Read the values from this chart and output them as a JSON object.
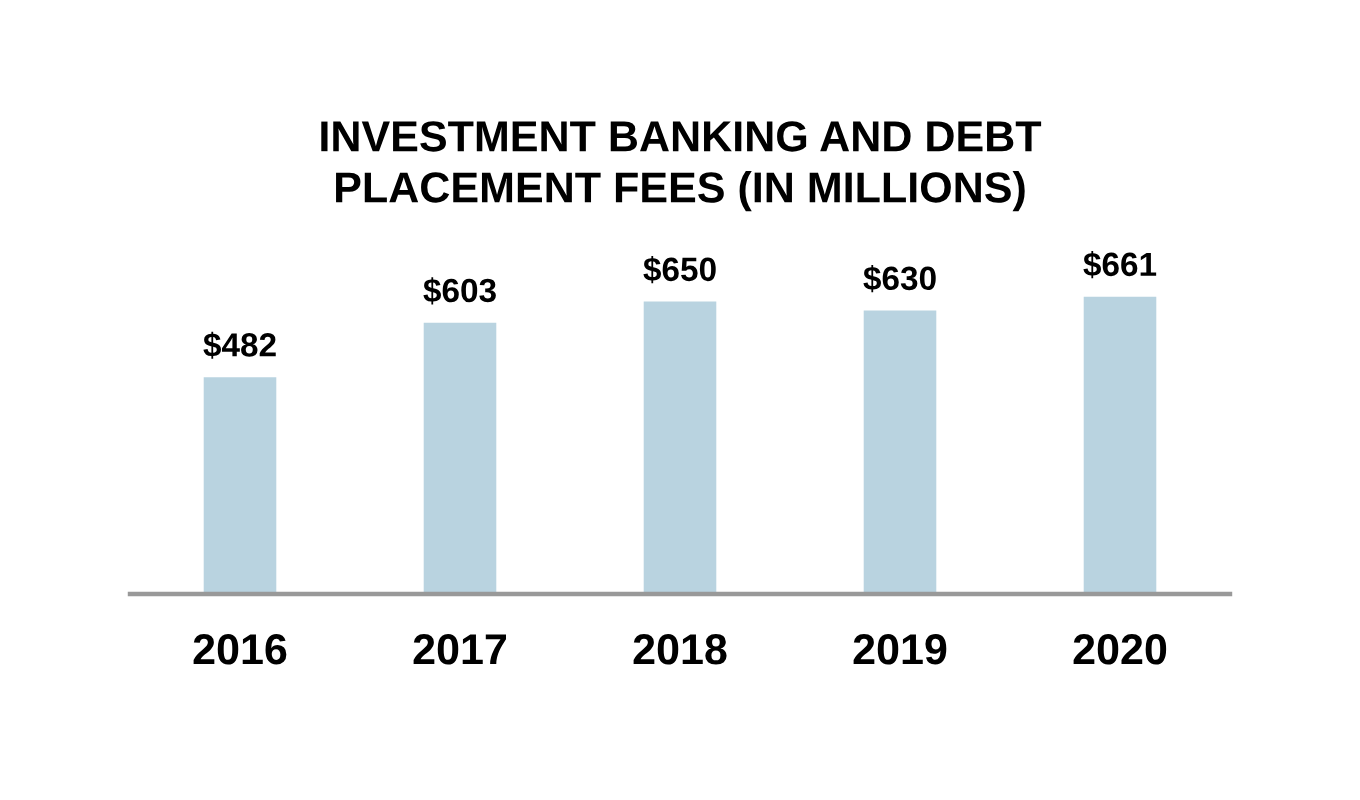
{
  "chart_data": {
    "type": "bar",
    "title": "INVESTMENT BANKING AND DEBT\nPLACEMENT FEES (IN MILLIONS)",
    "categories": [
      "2016",
      "2017",
      "2018",
      "2019",
      "2020"
    ],
    "values": [
      482,
      603,
      650,
      630,
      661
    ],
    "value_labels": [
      "$482",
      "$603",
      "$650",
      "$630",
      "$661"
    ],
    "color": "#b9d3e0",
    "tick_labels": "x"
  }
}
